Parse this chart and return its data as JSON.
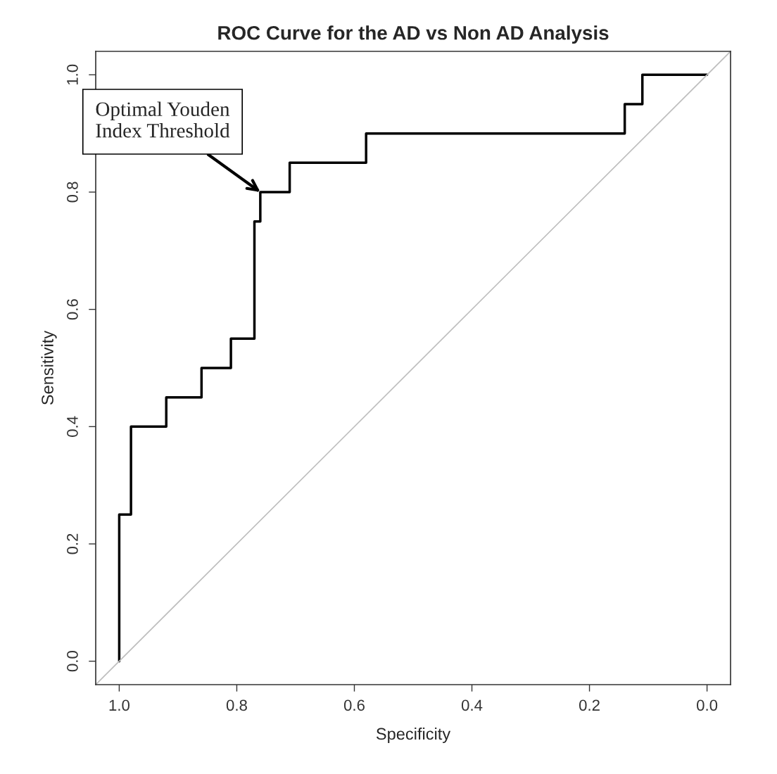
{
  "chart_data": {
    "type": "step",
    "title": "ROC Curve for the AD vs Non AD Analysis",
    "xlabel": "Specificity",
    "ylabel": "Sensitivity",
    "series": [
      {
        "color": "#000000",
        "x": [
          1.0,
          0.98,
          0.92,
          0.86,
          0.81,
          0.77,
          0.76,
          0.71,
          0.58,
          0.14,
          0.11,
          0.0
        ],
        "values": [
          0.0,
          0.25,
          0.4,
          0.45,
          0.5,
          0.55,
          0.75,
          0.8,
          0.85,
          0.9,
          0.95,
          1.0
        ]
      },
      {
        "type": "line",
        "color": "#bebebe",
        "x": [
          1.04,
          -0.04
        ],
        "values": [
          -0.04,
          1.04
        ]
      }
    ],
    "annotations": [
      {
        "text": "Optimal Youden\nIndex Threshold",
        "x": 0.76,
        "y": 0.8
      }
    ],
    "xlim": [
      1.04,
      -0.04
    ],
    "ylim": [
      -0.04,
      1.04
    ],
    "xticks": [
      {
        "value": 1.0,
        "label": "1.0"
      },
      {
        "value": 0.8,
        "label": "0.8"
      },
      {
        "value": 0.6,
        "label": "0.6"
      },
      {
        "value": 0.4,
        "label": "0.4"
      },
      {
        "value": 0.2,
        "label": "0.2"
      },
      {
        "value": 0.0,
        "label": "0.0"
      }
    ],
    "yticks": [
      {
        "value": 0.0,
        "label": "0.0"
      },
      {
        "value": 0.2,
        "label": "0.2"
      },
      {
        "value": 0.4,
        "label": "0.4"
      },
      {
        "value": 0.6,
        "label": "0.6"
      },
      {
        "value": 0.8,
        "label": "0.8"
      },
      {
        "value": 1.0,
        "label": "1.0"
      }
    ],
    "grid": false
  }
}
